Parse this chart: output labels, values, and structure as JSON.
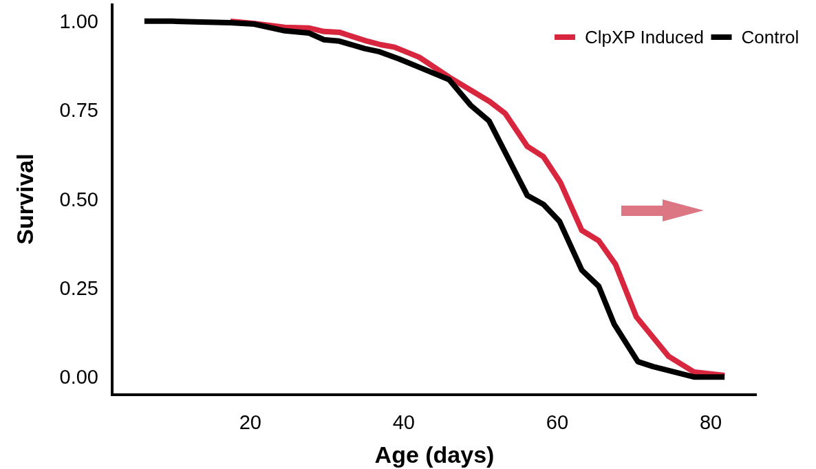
{
  "chart_data": {
    "type": "line",
    "xlabel": "Age (days)",
    "ylabel": "Survival",
    "xlim": [
      2,
      86
    ],
    "xticks": [
      20,
      40,
      60,
      80
    ],
    "ylim": [
      -0.05,
      1.05
    ],
    "yticks": [
      {
        "value": 0,
        "label": "0.00"
      },
      {
        "value": 0.25,
        "label": "0.25"
      },
      {
        "value": 0.5,
        "label": "0.50"
      },
      {
        "value": 0.75,
        "label": "0.75"
      },
      {
        "value": 1,
        "label": "1.00"
      }
    ],
    "grid": false,
    "legend": "top right",
    "marker": "none",
    "line_style": "solid",
    "series": [
      {
        "name": "ClpXP Induced",
        "color": "#d7263d",
        "x": [
          17.4,
          20.4,
          24.5,
          27.6,
          29.6,
          31.6,
          34.9,
          37.0,
          38.8,
          42.0,
          45.9,
          51.2,
          53.2,
          56.1,
          58.2,
          60.4,
          63.2,
          65.4,
          67.6,
          70.3,
          74.5,
          77.8,
          81.8
        ],
        "values": [
          1.0,
          0.994,
          0.983,
          0.981,
          0.971,
          0.969,
          0.946,
          0.934,
          0.927,
          0.899,
          0.843,
          0.774,
          0.741,
          0.648,
          0.619,
          0.547,
          0.412,
          0.383,
          0.316,
          0.169,
          0.058,
          0.014,
          0.004
        ]
      },
      {
        "name": "Control",
        "color": "#000000",
        "x": [
          6.2,
          9.8,
          13.6,
          17.4,
          20.5,
          24.5,
          27.6,
          29.6,
          31.6,
          34.9,
          36.7,
          39.4,
          42.3,
          45.9,
          48.7,
          51.1,
          56.1,
          58.2,
          60.3,
          63.2,
          65.4,
          67.4,
          70.5,
          72.5,
          77.8,
          81.8
        ],
        "values": [
          1.0,
          1.0,
          0.998,
          0.996,
          0.992,
          0.973,
          0.967,
          0.948,
          0.944,
          0.923,
          0.915,
          0.894,
          0.868,
          0.836,
          0.764,
          0.72,
          0.51,
          0.485,
          0.437,
          0.3,
          0.255,
          0.149,
          0.043,
          0.029,
          0.0,
          0.0
        ]
      }
    ]
  }
}
